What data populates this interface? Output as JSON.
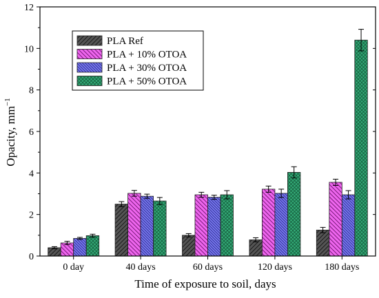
{
  "chart_data": {
    "type": "bar",
    "xlabel": "Time of exposure to soil, days",
    "ylabel": "Opacity, mm",
    "ylabel_sup": "−1",
    "ylim": [
      0,
      12
    ],
    "yticks": [
      0,
      2,
      4,
      6,
      8,
      10,
      12
    ],
    "ytick_labels": [
      "0",
      "2",
      "4",
      "6",
      "8",
      "10",
      "12"
    ],
    "categories": [
      "0 day",
      "40 days",
      "60 days",
      "120 days",
      "180 days"
    ],
    "legend_position": "top-left",
    "grid": false,
    "series": [
      {
        "name": "PLA Ref",
        "color": "#555555",
        "hatch": "forward-diagonal",
        "values": [
          0.4,
          2.5,
          1.0,
          0.78,
          1.25
        ],
        "errors": [
          0.05,
          0.12,
          0.08,
          0.1,
          0.13
        ]
      },
      {
        "name": "PLA + 10% OTOA",
        "color": "#ee66ee",
        "hatch": "backward-diagonal",
        "values": [
          0.63,
          3.02,
          2.95,
          3.22,
          3.55
        ],
        "errors": [
          0.08,
          0.14,
          0.12,
          0.15,
          0.15
        ]
      },
      {
        "name": "PLA + 30% OTOA",
        "color": "#7777ee",
        "hatch": "backward-diagonal-dense",
        "values": [
          0.85,
          2.88,
          2.83,
          3.02,
          2.95
        ],
        "errors": [
          0.05,
          0.1,
          0.1,
          0.2,
          0.2
        ]
      },
      {
        "name": "PLA + 50% OTOA",
        "color": "#33aa77",
        "hatch": "crosshatch",
        "values": [
          0.98,
          2.65,
          2.95,
          4.03,
          10.4
        ],
        "errors": [
          0.07,
          0.17,
          0.2,
          0.27,
          0.52
        ]
      }
    ]
  }
}
